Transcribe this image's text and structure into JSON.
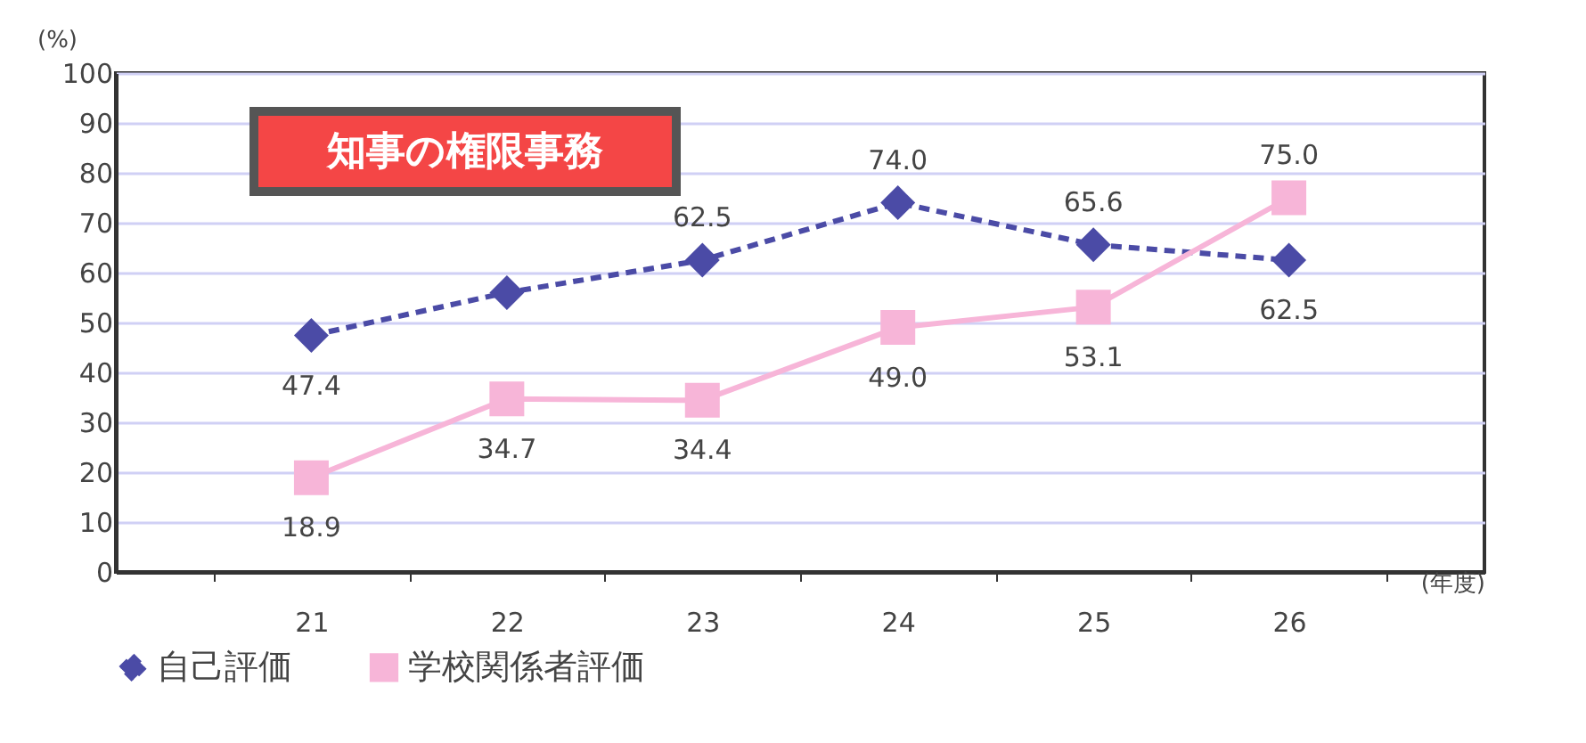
{
  "chart_data": {
    "type": "line",
    "ylabel": "(%)",
    "xlabel": "(年度)",
    "categories": [
      "21",
      "22",
      "23",
      "24",
      "25",
      "26"
    ],
    "series": [
      {
        "name": "自己評価",
        "color": "#4b4ba6",
        "line_style": "dashed",
        "marker": "diamond",
        "values": [
          47.4,
          56,
          62.5,
          74.0,
          65.6,
          62.5
        ],
        "value_labels": [
          "47.4",
          null,
          "62.5",
          "74.0",
          "65.6",
          "62.5"
        ]
      },
      {
        "name": "学校関係者評価",
        "color": "#f7b5d8",
        "line_style": "solid",
        "marker": "square",
        "values": [
          18.9,
          34.7,
          34.4,
          49.0,
          53.1,
          75.0
        ],
        "value_labels": [
          "18.9",
          "34.7",
          "34.4",
          "49.0",
          "53.1",
          "75.0"
        ]
      }
    ],
    "ylim": [
      0,
      100
    ],
    "yticks": [
      0,
      10,
      20,
      30,
      40,
      50,
      60,
      70,
      80,
      90,
      100
    ],
    "grid": "y",
    "legend": "bottom",
    "annotations": [
      "知事の権限事務"
    ]
  }
}
